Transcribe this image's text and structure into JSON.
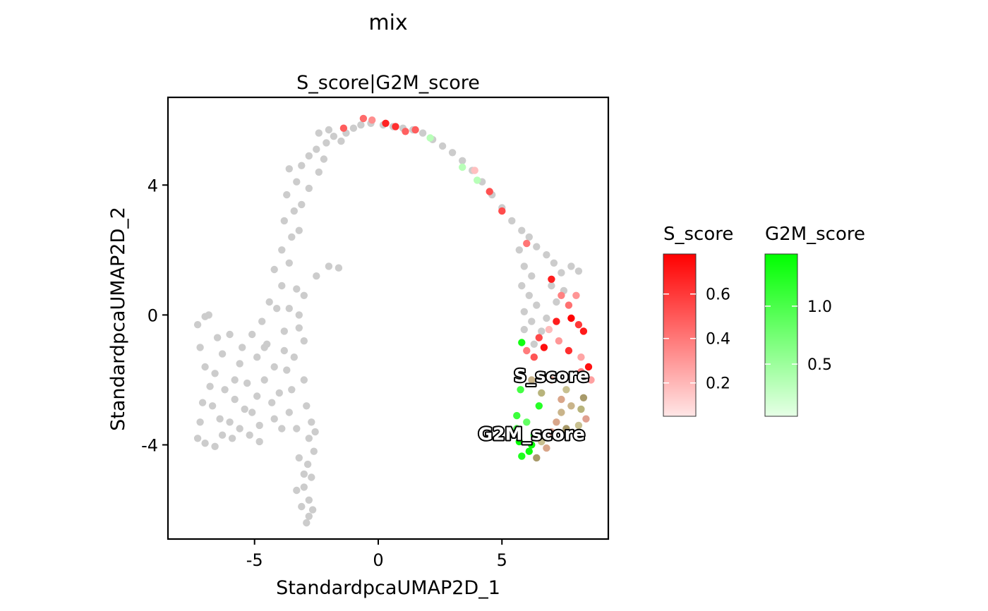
{
  "chart_data": {
    "type": "scatter",
    "title": "mix",
    "subtitle": "S_score|G2M_score",
    "xlabel": "StandardpcaUMAP2D_1",
    "ylabel": "StandardpcaUMAP2D_2",
    "xlim": [
      -8.5,
      9.3
    ],
    "ylim": [
      -6.9,
      6.7
    ],
    "x_ticks": [
      -5,
      0,
      5
    ],
    "x_tick_labels": [
      "-5",
      "0",
      "5"
    ],
    "y_ticks": [
      -4,
      0,
      4
    ],
    "y_tick_labels": [
      "-4",
      "0",
      "4"
    ],
    "grid": false,
    "legend_position": "right",
    "na_color": "#cccccc",
    "legends": [
      {
        "name": "S_score",
        "low_color": "#ffe6e6",
        "high_color": "#ff0000",
        "range": [
          0.05,
          0.78
        ],
        "ticks": [
          0.2,
          0.4,
          0.6
        ],
        "tick_labels": [
          "0.2",
          "0.4",
          "0.6"
        ]
      },
      {
        "name": "G2M_score",
        "low_color": "#e6ffe6",
        "high_color": "#00ff00",
        "range": [
          0.05,
          1.45
        ],
        "ticks": [
          0.5,
          1.0
        ],
        "tick_labels": [
          "0.5",
          "1.0"
        ]
      }
    ],
    "annotations": [
      {
        "label": "S_score",
        "x": 7.0,
        "y": -2.05
      },
      {
        "label": "G2M_score",
        "x": 6.2,
        "y": -3.85
      }
    ],
    "grey_cells": [
      [
        -7.3,
        -0.3
      ],
      [
        -7.0,
        -0.05
      ],
      [
        -6.85,
        0.0
      ],
      [
        -7.2,
        -1.0
      ],
      [
        -7.0,
        -1.6
      ],
      [
        -6.8,
        -2.2
      ],
      [
        -7.1,
        -2.7
      ],
      [
        -7.2,
        -3.3
      ],
      [
        -7.3,
        -3.8
      ],
      [
        -7.0,
        -3.95
      ],
      [
        -6.6,
        -4.05
      ],
      [
        -6.3,
        -3.7
      ],
      [
        -6.0,
        -3.3
      ],
      [
        -5.6,
        -3.5
      ],
      [
        -5.2,
        -3.7
      ],
      [
        -4.8,
        -3.4
      ],
      [
        -5.4,
        -2.9
      ],
      [
        -5.8,
        -2.6
      ],
      [
        -6.2,
        -2.3
      ],
      [
        -6.6,
        -1.8
      ],
      [
        -6.3,
        -1.2
      ],
      [
        -6.0,
        -0.6
      ],
      [
        -5.6,
        -1.5
      ],
      [
        -5.3,
        -2.1
      ],
      [
        -4.9,
        -2.5
      ],
      [
        -4.6,
        -2.0
      ],
      [
        -4.9,
        -1.3
      ],
      [
        -5.1,
        -0.6
      ],
      [
        -4.7,
        -0.2
      ],
      [
        -4.4,
        0.4
      ],
      [
        -4.5,
        -0.9
      ],
      [
        -4.2,
        -1.6
      ],
      [
        -4.0,
        -2.4
      ],
      [
        -3.8,
        -1.1
      ],
      [
        -3.6,
        0.2
      ],
      [
        -3.9,
        0.9
      ],
      [
        -4.2,
        1.4
      ],
      [
        -3.6,
        1.6
      ],
      [
        -3.3,
        0.8
      ],
      [
        -3.5,
        2.4
      ],
      [
        -3.8,
        2.9
      ],
      [
        -3.4,
        3.2
      ],
      [
        -3.7,
        3.7
      ],
      [
        -3.1,
        3.4
      ],
      [
        -3.3,
        4.1
      ],
      [
        -3.6,
        4.5
      ],
      [
        -3.1,
        4.6
      ],
      [
        -2.8,
        4.9
      ],
      [
        -2.5,
        5.1
      ],
      [
        -2.1,
        5.3
      ],
      [
        -1.8,
        5.5
      ],
      [
        -1.5,
        5.35
      ],
      [
        -2.4,
        5.6
      ],
      [
        -2.0,
        5.7
      ],
      [
        -1.3,
        5.6
      ],
      [
        -1.0,
        5.75
      ],
      [
        -0.7,
        5.85
      ],
      [
        -0.3,
        5.9
      ],
      [
        0.2,
        5.85
      ],
      [
        0.6,
        5.8
      ],
      [
        1.0,
        5.75
      ],
      [
        1.4,
        5.7
      ],
      [
        1.8,
        5.6
      ],
      [
        2.2,
        5.4
      ],
      [
        2.6,
        5.2
      ],
      [
        3.0,
        5.0
      ],
      [
        3.4,
        4.75
      ],
      [
        3.8,
        4.45
      ],
      [
        4.2,
        4.1
      ],
      [
        4.6,
        3.7
      ],
      [
        5.0,
        3.3
      ],
      [
        5.4,
        2.9
      ],
      [
        5.8,
        2.6
      ],
      [
        6.1,
        2.4
      ],
      [
        6.4,
        2.1
      ],
      [
        6.8,
        1.85
      ],
      [
        7.1,
        1.6
      ],
      [
        7.4,
        1.3
      ],
      [
        7.8,
        1.5
      ],
      [
        8.1,
        1.35
      ],
      [
        5.7,
        2.0
      ],
      [
        5.9,
        1.5
      ],
      [
        6.2,
        1.2
      ],
      [
        5.8,
        0.9
      ],
      [
        6.1,
        0.6
      ],
      [
        6.4,
        0.3
      ],
      [
        5.9,
        0.1
      ],
      [
        6.2,
        -0.2
      ],
      [
        6.6,
        -0.5
      ],
      [
        5.9,
        -0.45
      ],
      [
        6.3,
        -0.9
      ],
      [
        6.8,
        -0.1
      ],
      [
        7.2,
        0.4
      ],
      [
        7.0,
        0.9
      ],
      [
        7.5,
        0.75
      ],
      [
        -2.0,
        1.5
      ],
      [
        -1.6,
        1.45
      ],
      [
        -2.5,
        1.2
      ],
      [
        -3.0,
        0.6
      ],
      [
        -3.2,
        0.0
      ],
      [
        -3.0,
        -0.8
      ],
      [
        -3.4,
        -1.3
      ],
      [
        -3.0,
        -2.0
      ],
      [
        -2.9,
        -2.8
      ],
      [
        -2.7,
        -3.3
      ],
      [
        -2.8,
        -3.8
      ],
      [
        -2.6,
        -4.2
      ],
      [
        -2.85,
        -4.6
      ],
      [
        -2.7,
        -5.0
      ],
      [
        -3.0,
        -5.3
      ],
      [
        -2.8,
        -5.7
      ],
      [
        -2.65,
        -6.0
      ],
      [
        -2.8,
        -6.2
      ],
      [
        -3.1,
        -5.9
      ],
      [
        -3.3,
        -5.4
      ],
      [
        -3.0,
        -4.9
      ],
      [
        -3.2,
        -4.4
      ],
      [
        -2.55,
        -3.6
      ],
      [
        -3.3,
        -3.5
      ],
      [
        -3.6,
        -3.0
      ],
      [
        -3.9,
        -3.5
      ],
      [
        -4.2,
        -3.2
      ],
      [
        -3.5,
        -2.3
      ],
      [
        -3.7,
        -1.7
      ],
      [
        -3.2,
        -0.4
      ],
      [
        -3.8,
        -0.5
      ],
      [
        -4.1,
        0.2
      ],
      [
        -2.8,
        3.9
      ],
      [
        -2.4,
        4.4
      ],
      [
        -2.2,
        4.8
      ],
      [
        -3.9,
        2.0
      ],
      [
        -3.2,
        2.6
      ],
      [
        -4.6,
        -1.0
      ],
      [
        -5.5,
        -1.0
      ],
      [
        -5.8,
        -2.0
      ],
      [
        -6.5,
        -0.7
      ],
      [
        -6.7,
        -2.8
      ],
      [
        -6.4,
        -3.2
      ],
      [
        -5.9,
        -3.8
      ],
      [
        -5.1,
        -3.0
      ],
      [
        -4.3,
        -2.7
      ],
      [
        -4.8,
        -3.9
      ],
      [
        -2.9,
        -6.4
      ]
    ],
    "s_cells": [
      [
        -0.6,
        6.05
      ],
      [
        -0.25,
        6.0
      ],
      [
        0.3,
        5.9
      ],
      [
        0.7,
        5.8
      ],
      [
        1.1,
        5.65
      ],
      [
        1.5,
        5.7
      ],
      [
        -1.4,
        5.75
      ],
      [
        3.9,
        4.45
      ],
      [
        4.5,
        3.8
      ],
      [
        5.0,
        3.2
      ],
      [
        6.0,
        2.2
      ],
      [
        7.0,
        1.1
      ],
      [
        7.4,
        0.6
      ],
      [
        7.7,
        0.3
      ],
      [
        8.0,
        0.6
      ],
      [
        7.8,
        -0.1
      ],
      [
        8.1,
        -0.3
      ],
      [
        8.3,
        -0.5
      ],
      [
        7.2,
        -0.2
      ],
      [
        6.9,
        -0.45
      ],
      [
        6.5,
        -0.7
      ],
      [
        6.7,
        -1.0
      ],
      [
        7.3,
        -0.8
      ],
      [
        7.7,
        -1.1
      ],
      [
        8.2,
        -1.3
      ],
      [
        8.5,
        -1.6
      ],
      [
        8.6,
        -2.0
      ],
      [
        8.2,
        -1.75
      ],
      [
        6.3,
        -1.3
      ],
      [
        6.0,
        -1.1
      ]
    ],
    "g2m_cells": [
      [
        2.1,
        5.45
      ],
      [
        3.4,
        4.55
      ],
      [
        4.0,
        4.15
      ],
      [
        5.8,
        -0.85
      ],
      [
        5.75,
        -2.3
      ],
      [
        5.6,
        -3.1
      ],
      [
        5.6,
        -3.5
      ],
      [
        5.7,
        -3.9
      ],
      [
        5.8,
        -4.35
      ],
      [
        6.1,
        -4.2
      ],
      [
        6.3,
        -3.7
      ],
      [
        6.0,
        -3.3
      ],
      [
        6.5,
        -2.8
      ],
      [
        6.2,
        -4.0
      ]
    ],
    "mixed_cells": [
      [
        7.4,
        -2.6
      ],
      [
        7.8,
        -2.8
      ],
      [
        8.2,
        -2.9
      ],
      [
        8.4,
        -3.2
      ],
      [
        8.1,
        -3.4
      ],
      [
        7.6,
        -3.5
      ],
      [
        7.2,
        -3.3
      ],
      [
        7.4,
        -3.0
      ],
      [
        8.0,
        -3.7
      ],
      [
        7.0,
        -3.6
      ],
      [
        6.6,
        -3.9
      ],
      [
        6.4,
        -4.4
      ],
      [
        6.8,
        -4.1
      ],
      [
        6.2,
        -2.0
      ],
      [
        6.6,
        -2.4
      ],
      [
        7.0,
        -2.0
      ],
      [
        7.6,
        -2.3
      ],
      [
        8.3,
        -2.55
      ]
    ]
  }
}
